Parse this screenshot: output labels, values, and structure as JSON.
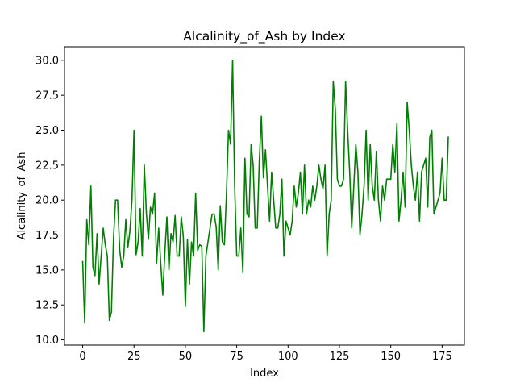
{
  "colors": {
    "line": "#008000",
    "axes": "#000000",
    "background": "#ffffff"
  },
  "chart_data": {
    "type": "line",
    "title": "Alcalinity_of_Ash by Index",
    "xlabel": "Index",
    "ylabel": "Alcalinity_of_Ash",
    "xlim": [
      -8.85,
      185.85
    ],
    "ylim": [
      9.63,
      30.97
    ],
    "xticks": [
      0,
      25,
      50,
      75,
      100,
      125,
      150,
      175
    ],
    "xtick_labels": [
      "0",
      "25",
      "50",
      "75",
      "100",
      "125",
      "150",
      "175"
    ],
    "yticks": [
      10.0,
      12.5,
      15.0,
      17.5,
      20.0,
      22.5,
      25.0,
      27.5,
      30.0
    ],
    "ytick_labels": [
      "10.0",
      "12.5",
      "15.0",
      "17.5",
      "20.0",
      "22.5",
      "25.0",
      "27.5",
      "30.0"
    ],
    "grid": false,
    "legend": null,
    "series": [
      {
        "values": [
          15.6,
          11.2,
          18.6,
          16.8,
          21.0,
          15.2,
          14.6,
          17.6,
          14.0,
          16.0,
          18.0,
          16.8,
          16.0,
          11.4,
          12.0,
          17.2,
          20.0,
          20.0,
          16.5,
          15.2,
          16.0,
          18.6,
          16.6,
          17.8,
          20.0,
          25.0,
          16.1,
          17.0,
          19.4,
          16.0,
          22.5,
          19.1,
          17.2,
          19.5,
          19.0,
          20.5,
          15.5,
          18.0,
          15.5,
          13.2,
          16.2,
          18.8,
          15.0,
          17.6,
          17.0,
          18.9,
          16.0,
          16.0,
          18.8,
          17.4,
          12.4,
          17.2,
          14.0,
          17.0,
          16.0,
          20.5,
          16.4,
          16.8,
          16.7,
          10.6,
          16.0,
          17.0,
          18.0,
          19.0,
          19.0,
          18.1,
          15.0,
          19.6,
          17.0,
          16.8,
          20.4,
          25.0,
          24.0,
          30.0,
          21.0,
          16.0,
          16.0,
          18.0,
          14.8,
          23.0,
          19.0,
          18.8,
          24.0,
          22.5,
          18.0,
          18.0,
          22.8,
          26.0,
          21.6,
          23.6,
          21.0,
          18.5,
          22.0,
          20.0,
          18.0,
          18.0,
          19.0,
          21.5,
          16.0,
          18.5,
          18.0,
          17.5,
          18.5,
          21.0,
          19.5,
          20.5,
          22.0,
          19.0,
          22.5,
          19.0,
          20.0,
          19.5,
          21.0,
          20.0,
          21.0,
          22.5,
          21.5,
          20.8,
          22.5,
          16.0,
          19.0,
          20.0,
          28.5,
          26.5,
          21.5,
          21.0,
          21.0,
          21.5,
          28.5,
          25.0,
          22.0,
          18.0,
          21.0,
          24.0,
          22.0,
          17.5,
          19.0,
          21.0,
          25.0,
          20.0,
          24.0,
          21.0,
          20.0,
          23.5,
          20.0,
          18.5,
          21.0,
          20.0,
          21.5,
          21.5,
          21.5,
          24.0,
          22.0,
          25.5,
          18.5,
          20.0,
          22.0,
          19.5,
          27.0,
          25.0,
          22.5,
          21.0,
          20.0,
          22.0,
          18.5,
          22.0,
          22.5,
          23.0,
          19.5,
          24.5,
          25.0,
          19.0,
          19.5,
          20.0,
          20.5,
          23.0,
          20.0,
          20.0,
          24.5
        ]
      }
    ]
  }
}
